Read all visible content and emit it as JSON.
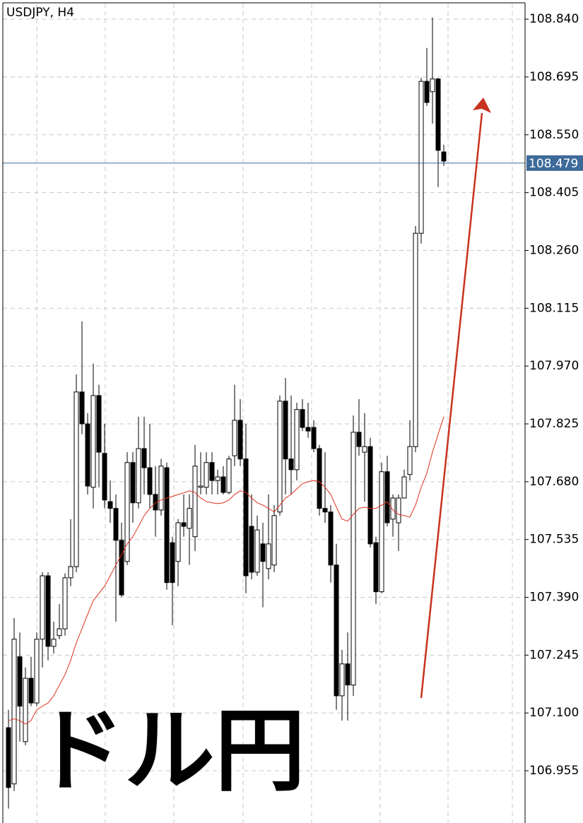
{
  "chart_data": {
    "type": "candlestick",
    "title": "USDJPY, H4",
    "annotation": "ドル円",
    "ylim": [
      106.824,
      108.888
    ],
    "yticks": [
      {
        "value": 108.84,
        "label": "108.840"
      },
      108.695,
      {
        "value": 108.55,
        "label": "108.550"
      },
      108.405,
      {
        "value": 108.26,
        "label": "108.260"
      },
      108.115,
      {
        "value": 107.97,
        "label": "107.970"
      },
      107.825,
      {
        "value": 107.68,
        "label": "107.680"
      },
      107.535,
      {
        "value": 107.39,
        "label": "107.390"
      },
      107.245,
      {
        "value": 107.1,
        "label": "107.100"
      },
      106.955
    ],
    "grid": true,
    "up_color": "#ffffff",
    "down_color": "#000000",
    "current_price": 108.479,
    "current_price_color": "#3d6a99",
    "ma_color": "#e0301e",
    "open": [
      107.063,
      106.922,
      107.241,
      107.028,
      107.187,
      107.125,
      107.285,
      107.444,
      107.267,
      107.294,
      107.311,
      107.439,
      107.467,
      107.905,
      107.825,
      107.666,
      107.896,
      107.751,
      107.63,
      107.613,
      107.533,
      107.48,
      107.728,
      107.627,
      107.763,
      107.715,
      107.648,
      107.609,
      107.715,
      107.527,
      107.48,
      107.577,
      107.563,
      107.542,
      107.666,
      107.666,
      107.728,
      107.683,
      107.692,
      107.653,
      107.745,
      107.834,
      107.737,
      107.568,
      107.453,
      107.524,
      107.462,
      107.471,
      107.604,
      107.882,
      107.737,
      107.71,
      107.861,
      107.816,
      107.816,
      107.763,
      107.613,
      107.604,
      107.471,
      107.143,
      107.223,
      107.17,
      107.804,
      107.754,
      107.768,
      107.527,
      107.404,
      107.705,
      107.586,
      107.577,
      107.639,
      107.698,
      107.768,
      108.303,
      108.684,
      108.658,
      108.69,
      108.507
    ],
    "high": [
      107.108,
      107.338,
      107.302,
      107.214,
      107.241,
      107.302,
      107.453,
      107.453,
      107.329,
      107.373,
      107.45,
      107.586,
      107.949,
      108.082,
      107.852,
      107.976,
      107.923,
      107.825,
      107.683,
      107.648,
      107.577,
      107.754,
      107.754,
      107.843,
      107.843,
      107.825,
      107.719,
      107.737,
      107.728,
      107.542,
      107.586,
      107.648,
      107.648,
      107.772,
      107.754,
      107.754,
      107.754,
      107.71,
      107.719,
      107.745,
      107.923,
      107.887,
      107.825,
      107.648,
      107.595,
      107.577,
      107.648,
      107.621,
      107.896,
      107.94,
      107.896,
      107.878,
      107.887,
      107.878,
      107.834,
      107.772,
      107.754,
      107.621,
      107.524,
      107.258,
      107.302,
      107.846,
      107.887,
      107.852,
      107.79,
      107.542,
      107.728,
      107.745,
      107.648,
      107.648,
      107.71,
      107.834,
      108.321,
      108.693,
      108.768,
      108.844,
      108.693,
      108.525
    ],
    "low": [
      106.86,
      106.904,
      107.028,
      107.019,
      107.117,
      107.117,
      107.214,
      107.232,
      107.249,
      107.285,
      107.294,
      107.418,
      107.453,
      107.799,
      107.648,
      107.613,
      107.666,
      107.613,
      107.577,
      107.329,
      107.391,
      107.471,
      107.577,
      107.613,
      107.648,
      107.613,
      107.542,
      107.595,
      107.409,
      107.32,
      107.418,
      107.542,
      107.471,
      107.506,
      107.648,
      107.648,
      107.648,
      107.648,
      107.648,
      107.648,
      107.719,
      107.719,
      107.4,
      107.435,
      107.444,
      107.365,
      107.435,
      107.453,
      107.595,
      107.648,
      107.648,
      107.683,
      107.807,
      107.79,
      107.754,
      107.595,
      107.577,
      107.427,
      107.108,
      107.081,
      107.081,
      107.143,
      107.745,
      107.63,
      107.515,
      107.373,
      107.4,
      107.568,
      107.542,
      107.506,
      107.648,
      107.683,
      107.754,
      108.277,
      108.622,
      108.578,
      108.419,
      108.472
    ],
    "close": [
      106.913,
      107.285,
      107.117,
      107.187,
      107.125,
      107.285,
      107.444,
      107.267,
      107.285,
      107.311,
      107.439,
      107.467,
      107.905,
      107.825,
      107.669,
      107.896,
      107.754,
      107.634,
      107.613,
      107.533,
      107.396,
      107.728,
      107.627,
      107.763,
      107.715,
      107.648,
      107.609,
      107.719,
      107.427,
      107.427,
      107.577,
      107.568,
      107.613,
      107.719,
      107.669,
      107.728,
      107.683,
      107.692,
      107.653,
      107.737,
      107.834,
      107.737,
      107.444,
      107.453,
      107.559,
      107.48,
      107.524,
      107.595,
      107.882,
      107.737,
      107.71,
      107.861,
      107.816,
      107.807,
      107.763,
      107.613,
      107.604,
      107.471,
      107.143,
      107.223,
      107.17,
      107.804,
      107.768,
      107.768,
      107.524,
      107.404,
      107.705,
      107.577,
      107.639,
      107.639,
      107.692,
      107.768,
      108.303,
      108.684,
      108.631,
      108.69,
      108.511,
      108.484
    ],
    "ma": [
      107.081,
      107.085,
      107.081,
      107.072,
      107.081,
      107.108,
      107.117,
      107.125,
      107.143,
      107.17,
      107.196,
      107.232,
      107.276,
      107.311,
      107.347,
      107.382,
      107.4,
      107.418,
      107.444,
      107.471,
      107.497,
      107.524,
      107.542,
      107.568,
      107.595,
      107.613,
      107.627,
      107.634,
      107.639,
      107.643,
      107.648,
      107.652,
      107.657,
      107.653,
      107.639,
      107.63,
      107.627,
      107.625,
      107.627,
      107.634,
      107.648,
      107.657,
      107.653,
      107.639,
      107.627,
      107.621,
      107.613,
      107.604,
      107.621,
      107.639,
      107.648,
      107.662,
      107.675,
      107.68,
      107.683,
      107.68,
      107.666,
      107.648,
      107.616,
      107.586,
      107.581,
      107.598,
      107.613,
      107.616,
      107.613,
      107.613,
      107.621,
      107.63,
      107.609,
      107.598,
      107.595,
      107.591,
      107.621,
      107.666,
      107.701,
      107.754,
      107.799,
      107.843
    ]
  }
}
